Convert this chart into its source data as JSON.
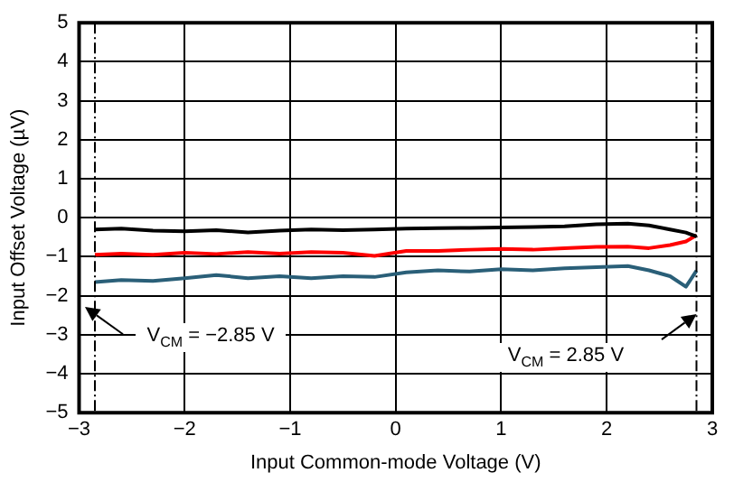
{
  "chart_data": {
    "type": "line",
    "xlabel": "Input Common-mode Voltage (V)",
    "ylabel": "Input Offset Voltage (µV)",
    "x": [
      -2.85,
      -2.6,
      -2.3,
      -2.0,
      -1.7,
      -1.4,
      -1.1,
      -0.8,
      -0.5,
      -0.2,
      0.1,
      0.4,
      0.7,
      1.0,
      1.3,
      1.6,
      1.9,
      2.2,
      2.4,
      2.6,
      2.75,
      2.85
    ],
    "series": [
      {
        "color": "#000000",
        "values": [
          -0.3,
          -0.28,
          -0.33,
          -0.35,
          -0.32,
          -0.38,
          -0.33,
          -0.3,
          -0.32,
          -0.3,
          -0.28,
          -0.27,
          -0.26,
          -0.25,
          -0.24,
          -0.22,
          -0.17,
          -0.15,
          -0.2,
          -0.3,
          -0.38,
          -0.48
        ]
      },
      {
        "color": "#ff0000",
        "values": [
          -0.95,
          -0.92,
          -0.95,
          -0.9,
          -0.93,
          -0.88,
          -0.92,
          -0.88,
          -0.9,
          -0.98,
          -0.85,
          -0.85,
          -0.82,
          -0.8,
          -0.82,
          -0.78,
          -0.75,
          -0.74,
          -0.78,
          -0.7,
          -0.61,
          -0.45
        ]
      },
      {
        "color": "#2a5f78",
        "values": [
          -1.65,
          -1.6,
          -1.62,
          -1.55,
          -1.47,
          -1.55,
          -1.5,
          -1.55,
          -1.5,
          -1.52,
          -1.4,
          -1.35,
          -1.38,
          -1.32,
          -1.35,
          -1.3,
          -1.27,
          -1.24,
          -1.35,
          -1.5,
          -1.77,
          -1.36
        ]
      }
    ],
    "xlim": [
      -3,
      3
    ],
    "xticks": [
      -3,
      -2,
      -1,
      0,
      1,
      2,
      3
    ],
    "ylim": [
      -5,
      5
    ],
    "yticks": [
      -5,
      -4,
      -3,
      -2,
      -1,
      0,
      1,
      2,
      3,
      4,
      5
    ],
    "ref_lines": [
      {
        "axis": "x",
        "value": -2.85,
        "color": "#000000",
        "line_style": "dashed"
      },
      {
        "axis": "x",
        "value": 2.85,
        "color": "#000000",
        "line_style": "dashed"
      }
    ],
    "annotations": [
      "V$_{CM}$ = −2.85 V",
      "V$_{CM}$ = 2.85 V"
    ],
    "grid": true,
    "legend": false,
    "marker": "none",
    "line_style": "solid"
  }
}
